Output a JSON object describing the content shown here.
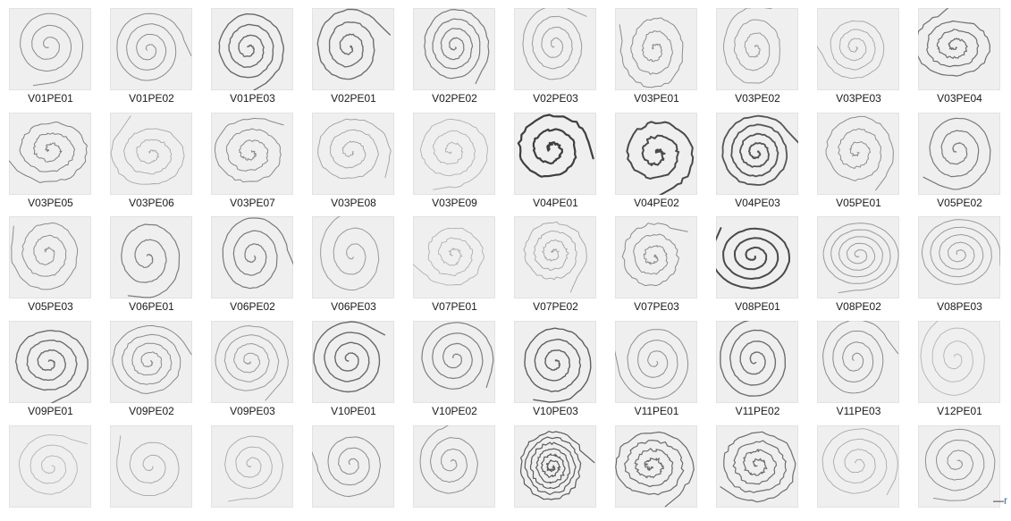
{
  "gallery": {
    "items": [
      {
        "label": "V01PE01",
        "tone": "#8a8a8a",
        "width": 1.0,
        "turns": 3.0,
        "jitter": 0.6
      },
      {
        "label": "V01PE02",
        "tone": "#8c8c8c",
        "width": 1.0,
        "turns": 3.5,
        "jitter": 0.6
      },
      {
        "label": "V01PE03",
        "tone": "#6a6a6a",
        "width": 1.4,
        "turns": 3.5,
        "jitter": 1.2
      },
      {
        "label": "V02PE01",
        "tone": "#6e6e6e",
        "width": 1.4,
        "turns": 3.0,
        "jitter": 1.4
      },
      {
        "label": "V02PE02",
        "tone": "#7a7a7a",
        "width": 1.2,
        "turns": 4.0,
        "jitter": 1.2
      },
      {
        "label": "V02PE03",
        "tone": "#9a9a9a",
        "width": 1.0,
        "turns": 3.5,
        "jitter": 1.0
      },
      {
        "label": "V03PE01",
        "tone": "#8a8a8a",
        "width": 1.0,
        "turns": 3.0,
        "jitter": 2.2
      },
      {
        "label": "V03PE02",
        "tone": "#9a9a9a",
        "width": 1.0,
        "turns": 3.0,
        "jitter": 1.4
      },
      {
        "label": "V03PE03",
        "tone": "#a4a4a4",
        "width": 0.9,
        "turns": 3.5,
        "jitter": 1.2
      },
      {
        "label": "V03PE04",
        "tone": "#6e6e6e",
        "width": 1.2,
        "turns": 3.5,
        "jitter": 2.4
      },
      {
        "label": "V03PE05",
        "tone": "#7e7e7e",
        "width": 1.0,
        "turns": 3.0,
        "jitter": 2.8
      },
      {
        "label": "V03PE06",
        "tone": "#a8a8a8",
        "width": 0.9,
        "turns": 3.0,
        "jitter": 2.2
      },
      {
        "label": "V03PE07",
        "tone": "#8a8a8a",
        "width": 1.0,
        "turns": 3.0,
        "jitter": 2.4
      },
      {
        "label": "V03PE08",
        "tone": "#a0a0a0",
        "width": 0.9,
        "turns": 3.0,
        "jitter": 1.8
      },
      {
        "label": "V03PE09",
        "tone": "#b0b0b0",
        "width": 0.9,
        "turns": 3.0,
        "jitter": 2.0
      },
      {
        "label": "V04PE01",
        "tone": "#3e3e3e",
        "width": 2.2,
        "turns": 2.5,
        "jitter": 2.6
      },
      {
        "label": "V04PE02",
        "tone": "#4a4a4a",
        "width": 2.0,
        "turns": 2.5,
        "jitter": 3.4
      },
      {
        "label": "V04PE03",
        "tone": "#555555",
        "width": 1.8,
        "turns": 4.0,
        "jitter": 1.4
      },
      {
        "label": "V05PE01",
        "tone": "#8e8e8e",
        "width": 1.0,
        "turns": 3.0,
        "jitter": 2.4
      },
      {
        "label": "V05PE02",
        "tone": "#7a7a7a",
        "width": 1.2,
        "turns": 3.0,
        "jitter": 1.0
      },
      {
        "label": "V05PE03",
        "tone": "#8e8e8e",
        "width": 1.0,
        "turns": 3.0,
        "jitter": 1.8
      },
      {
        "label": "V06PE01",
        "tone": "#7e7e7e",
        "width": 1.2,
        "turns": 2.5,
        "jitter": 1.0
      },
      {
        "label": "V06PE02",
        "tone": "#7a7a7a",
        "width": 1.2,
        "turns": 3.0,
        "jitter": 0.8
      },
      {
        "label": "V06PE03",
        "tone": "#9a9a9a",
        "width": 1.0,
        "turns": 2.5,
        "jitter": 0.8
      },
      {
        "label": "V07PE01",
        "tone": "#b0b0b0",
        "width": 0.9,
        "turns": 3.0,
        "jitter": 2.6
      },
      {
        "label": "V07PE02",
        "tone": "#a4a4a4",
        "width": 0.9,
        "turns": 3.5,
        "jitter": 2.6
      },
      {
        "label": "V07PE03",
        "tone": "#8a8a8a",
        "width": 1.0,
        "turns": 3.0,
        "jitter": 2.8
      },
      {
        "label": "V08PE01",
        "tone": "#4a4a4a",
        "width": 2.0,
        "turns": 3.5,
        "jitter": 0.6
      },
      {
        "label": "V08PE02",
        "tone": "#9a9a9a",
        "width": 1.0,
        "turns": 5.0,
        "jitter": 0.6
      },
      {
        "label": "V08PE03",
        "tone": "#9a9a9a",
        "width": 1.0,
        "turns": 4.5,
        "jitter": 0.6
      },
      {
        "label": "V09PE01",
        "tone": "#6e6e6e",
        "width": 1.4,
        "turns": 3.5,
        "jitter": 1.2
      },
      {
        "label": "V09PE02",
        "tone": "#8a8a8a",
        "width": 1.0,
        "turns": 4.0,
        "jitter": 1.4
      },
      {
        "label": "V09PE03",
        "tone": "#9a9a9a",
        "width": 1.0,
        "turns": 4.0,
        "jitter": 1.0
      },
      {
        "label": "V10PE01",
        "tone": "#6a6a6a",
        "width": 1.4,
        "turns": 3.5,
        "jitter": 0.6
      },
      {
        "label": "V10PE02",
        "tone": "#7e7e7e",
        "width": 1.2,
        "turns": 3.5,
        "jitter": 0.6
      },
      {
        "label": "V10PE03",
        "tone": "#5e5e5e",
        "width": 1.4,
        "turns": 3.5,
        "jitter": 1.2
      },
      {
        "label": "V11PE01",
        "tone": "#8e8e8e",
        "width": 1.0,
        "turns": 3.5,
        "jitter": 0.6
      },
      {
        "label": "V11PE02",
        "tone": "#6e6e6e",
        "width": 1.4,
        "turns": 3.5,
        "jitter": 0.6
      },
      {
        "label": "V11PE03",
        "tone": "#8a8a8a",
        "width": 1.0,
        "turns": 3.5,
        "jitter": 0.6
      },
      {
        "label": "V12PE01",
        "tone": "#b4b4b4",
        "width": 0.9,
        "turns": 3.0,
        "jitter": 0.6
      },
      {
        "label": "",
        "tone": "#b4b4b4",
        "width": 0.9,
        "turns": 3.0,
        "jitter": 0.8
      },
      {
        "label": "",
        "tone": "#a4a4a4",
        "width": 0.9,
        "turns": 2.5,
        "jitter": 0.8
      },
      {
        "label": "",
        "tone": "#a8a8a8",
        "width": 0.9,
        "turns": 3.0,
        "jitter": 0.8
      },
      {
        "label": "",
        "tone": "#8a8a8a",
        "width": 1.0,
        "turns": 3.0,
        "jitter": 0.8
      },
      {
        "label": "",
        "tone": "#8e8e8e",
        "width": 1.0,
        "turns": 3.0,
        "jitter": 0.8
      },
      {
        "label": "",
        "tone": "#5a5a5a",
        "width": 1.2,
        "turns": 6.0,
        "jitter": 3.0
      },
      {
        "label": "",
        "tone": "#6a6a6a",
        "width": 1.2,
        "turns": 4.0,
        "jitter": 3.4
      },
      {
        "label": "",
        "tone": "#6e6e6e",
        "width": 1.2,
        "turns": 4.0,
        "jitter": 3.0
      },
      {
        "label": "",
        "tone": "#aaaaaa",
        "width": 0.9,
        "turns": 3.5,
        "jitter": 0.8
      },
      {
        "label": "",
        "tone": "#8e8e8e",
        "width": 1.0,
        "turns": 3.5,
        "jitter": 0.8
      }
    ]
  },
  "footer": {
    "corner_glyph_left": "—",
    "corner_glyph_right": "r",
    "accent": "#2b6cd6"
  }
}
